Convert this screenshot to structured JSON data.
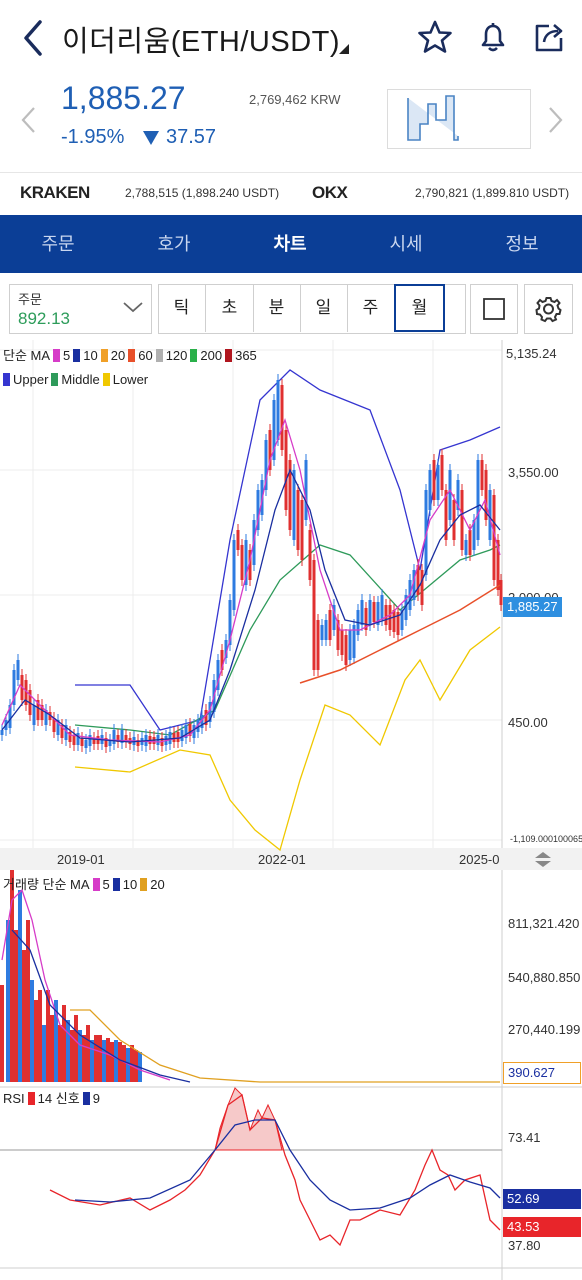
{
  "header": {
    "title": "이더리움(ETH/USDT)",
    "back_icon": "chevron-left-icon",
    "icons": [
      "star-icon",
      "bell-icon",
      "share-icon"
    ]
  },
  "price": {
    "value": "1,885.27",
    "change_pct": "-1.95%",
    "change_abs": "37.57",
    "krw": "2,769,462 KRW",
    "color": "#1f5fb4"
  },
  "exchanges": [
    {
      "name": "KRAKEN",
      "value": "2,788,515 (1,898.240 USDT)"
    },
    {
      "name": "OKX",
      "value": "2,790,821 (1,899.810 USDT)"
    }
  ],
  "tabs": [
    "주문",
    "호가",
    "차트",
    "시세",
    "정보"
  ],
  "active_tab": "차트",
  "toolbar": {
    "order_label": "주문",
    "order_value": "892.13",
    "periods": [
      "틱",
      "초",
      "분",
      "일",
      "주",
      "월"
    ],
    "active_period": "월"
  },
  "legend": {
    "ma_prefix": "단순 MA",
    "ma_items": [
      {
        "label": "5",
        "color": "#d63cc8"
      },
      {
        "label": "10",
        "color": "#1a2fa0"
      },
      {
        "label": "20",
        "color": "#f0a028"
      },
      {
        "label": "60",
        "color": "#e8502a"
      },
      {
        "label": "120",
        "color": "#b0b0b0"
      },
      {
        "label": "200",
        "color": "#2ab04a"
      },
      {
        "label": "365",
        "color": "#b0151e"
      }
    ],
    "bb_items": [
      {
        "label": "Upper",
        "color": "#3535d0"
      },
      {
        "label": "Middle",
        "color": "#2e9a5a"
      },
      {
        "label": "Lower",
        "color": "#f0c800"
      }
    ],
    "vol_prefix": "거래량 단순 MA",
    "vol_items": [
      {
        "label": "5",
        "color": "#d63cc8"
      },
      {
        "label": "10",
        "color": "#1a2fa0"
      },
      {
        "label": "20",
        "color": "#e0a020"
      }
    ],
    "rsi_prefix": "RSI",
    "rsi_items": [
      {
        "label": "14",
        "color": "#e8252a"
      },
      {
        "label": "신호",
        "color": ""
      },
      {
        "label": "9",
        "color": "#1a2fa0"
      }
    ]
  },
  "chart_data": [
    {
      "type": "candlestick",
      "title": "",
      "y_ticks": [
        "5,135.24",
        "3,550.00",
        "2,000.00",
        "450.00",
        "-1,109.000100065"
      ],
      "x_ticks": [
        "2019-01",
        "2022-01",
        "2025-0"
      ],
      "current_price_tag": "1,885.27",
      "ylim": [
        -1109,
        5135.24
      ]
    },
    {
      "type": "bar",
      "title": "",
      "y_ticks": [
        "811,321.420",
        "540,880.850",
        "270,440.199"
      ],
      "current_tag": "390.627"
    },
    {
      "type": "line",
      "title": "",
      "y_ticks": [
        "73.41",
        "37.80"
      ],
      "tags": [
        {
          "value": "52.69",
          "color": "#1a2fa0"
        },
        {
          "value": "43.53",
          "color": "#e8252a"
        }
      ]
    }
  ]
}
